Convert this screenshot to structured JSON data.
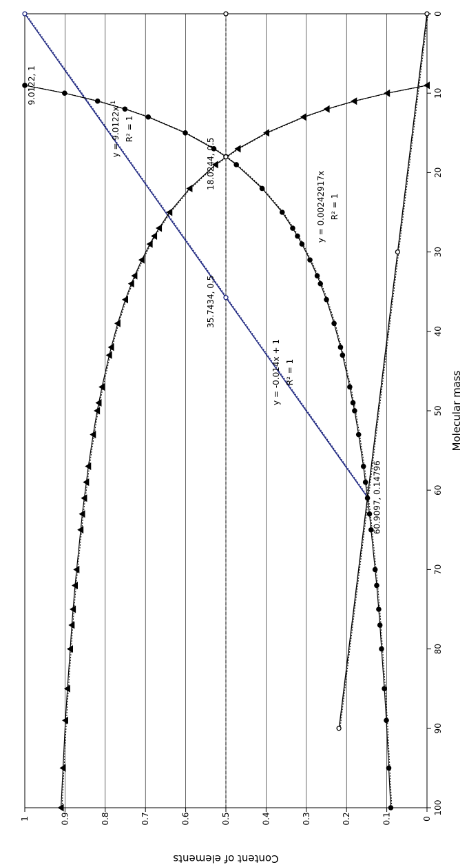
{
  "chart_data": {
    "type": "scatter",
    "orientation": "rotated-90-clockwise",
    "xlabel": "Molecular mass",
    "ylabel": "Content of elements",
    "xlim": [
      0,
      100
    ],
    "ylim": [
      0,
      1
    ],
    "x_ticks": [
      "0",
      "10",
      "20",
      "30",
      "40",
      "50",
      "60",
      "70",
      "80",
      "90",
      "100"
    ],
    "y_ticks": [
      "0",
      "0.1",
      "0.2",
      "0.3",
      "0.4",
      "0.5",
      "0.6",
      "0.7",
      "0.8",
      "0.9",
      "1"
    ],
    "grid": "horizontal",
    "colors": {
      "axis": "#000000",
      "linear_fit": "#1a237e"
    },
    "series": [
      {
        "marker": "circle",
        "color": "#000000",
        "points": [
          [
            9.0122,
            1
          ],
          [
            10,
            0.901
          ],
          [
            11,
            0.819
          ],
          [
            12,
            0.751
          ],
          [
            13,
            0.693
          ],
          [
            15,
            0.601
          ],
          [
            17,
            0.53
          ],
          [
            18,
            0.5
          ],
          [
            19,
            0.474
          ],
          [
            22,
            0.41
          ],
          [
            25,
            0.36
          ],
          [
            27,
            0.334
          ],
          [
            28,
            0.322
          ],
          [
            29,
            0.311
          ],
          [
            31,
            0.291
          ],
          [
            33,
            0.273
          ],
          [
            34,
            0.265
          ],
          [
            36,
            0.25
          ],
          [
            39,
            0.231
          ],
          [
            42,
            0.215
          ],
          [
            43,
            0.21
          ],
          [
            47,
            0.192
          ],
          [
            49,
            0.184
          ],
          [
            50,
            0.18
          ],
          [
            53,
            0.17
          ],
          [
            57,
            0.158
          ],
          [
            59,
            0.153
          ],
          [
            61,
            0.148
          ],
          [
            63,
            0.143
          ],
          [
            65,
            0.139
          ],
          [
            70,
            0.129
          ],
          [
            72,
            0.125
          ],
          [
            75,
            0.12
          ],
          [
            77,
            0.117
          ],
          [
            80,
            0.113
          ],
          [
            85,
            0.106
          ],
          [
            89,
            0.101
          ],
          [
            95,
            0.095
          ],
          [
            100,
            0.09
          ]
        ]
      },
      {
        "marker": "triangle",
        "color": "#000000",
        "points": [
          [
            9.0122,
            0
          ],
          [
            10,
            0.099
          ],
          [
            11,
            0.181
          ],
          [
            12,
            0.249
          ],
          [
            13,
            0.307
          ],
          [
            15,
            0.399
          ],
          [
            17,
            0.47
          ],
          [
            19,
            0.526
          ],
          [
            22,
            0.59
          ],
          [
            25,
            0.64
          ],
          [
            27,
            0.666
          ],
          [
            28,
            0.678
          ],
          [
            29,
            0.689
          ],
          [
            31,
            0.709
          ],
          [
            33,
            0.727
          ],
          [
            34,
            0.735
          ],
          [
            36,
            0.75
          ],
          [
            39,
            0.769
          ],
          [
            42,
            0.785
          ],
          [
            43,
            0.79
          ],
          [
            47,
            0.808
          ],
          [
            49,
            0.816
          ],
          [
            50,
            0.82
          ],
          [
            53,
            0.83
          ],
          [
            57,
            0.842
          ],
          [
            59,
            0.847
          ],
          [
            61,
            0.852
          ],
          [
            63,
            0.857
          ],
          [
            65,
            0.861
          ],
          [
            70,
            0.871
          ],
          [
            72,
            0.875
          ],
          [
            75,
            0.88
          ],
          [
            77,
            0.883
          ],
          [
            80,
            0.887
          ],
          [
            85,
            0.894
          ],
          [
            89,
            0.899
          ],
          [
            95,
            0.905
          ],
          [
            100,
            0.91
          ]
        ]
      },
      {
        "marker": "open-circle",
        "color": "#000000",
        "points": [
          [
            0,
            0
          ],
          [
            30,
            0.073
          ],
          [
            90,
            0.219
          ]
        ]
      },
      {
        "marker": "open-circle",
        "color": "#1a237e",
        "points": [
          [
            0,
            1
          ],
          [
            35.7434,
            0.5
          ]
        ]
      },
      {
        "marker": "open-circle",
        "color": "#000000",
        "points": [
          [
            0,
            0.5
          ],
          [
            18.0244,
            0.5
          ]
        ]
      }
    ],
    "lines": [
      {
        "name": "linear",
        "color": "#1a237e",
        "from": [
          0,
          1
        ],
        "to": [
          60.9097,
          0.14796
        ]
      },
      {
        "name": "proportional",
        "color": "#000000",
        "from": [
          0,
          0
        ],
        "to": [
          90,
          0.2186
        ]
      },
      {
        "name": "half-level",
        "color": "#000000",
        "style": "dashed",
        "from": [
          0,
          0.5
        ],
        "to": [
          100,
          0.5
        ]
      }
    ],
    "annotations": [
      {
        "text": "9.0122, 1",
        "x": 9.0122,
        "y": 1
      },
      {
        "text": "35.7434, 0.5",
        "x": 35.7434,
        "y": 0.5
      },
      {
        "text": "18.0244, 0.5",
        "x": 18.0244,
        "y": 0.5
      },
      {
        "text": "60.9097, 0.14796",
        "x": 60.9097,
        "y": 0.14796
      }
    ],
    "equations": [
      {
        "eq": "y = 9.0122x",
        "sup": "-1",
        "r2": "R² = 1"
      },
      {
        "eq": "y = -0.014x + 1",
        "sup": "",
        "r2": "R² = 1"
      },
      {
        "eq": "y = 0.00242917x",
        "sup": "",
        "r2": "R² = 1"
      }
    ]
  }
}
